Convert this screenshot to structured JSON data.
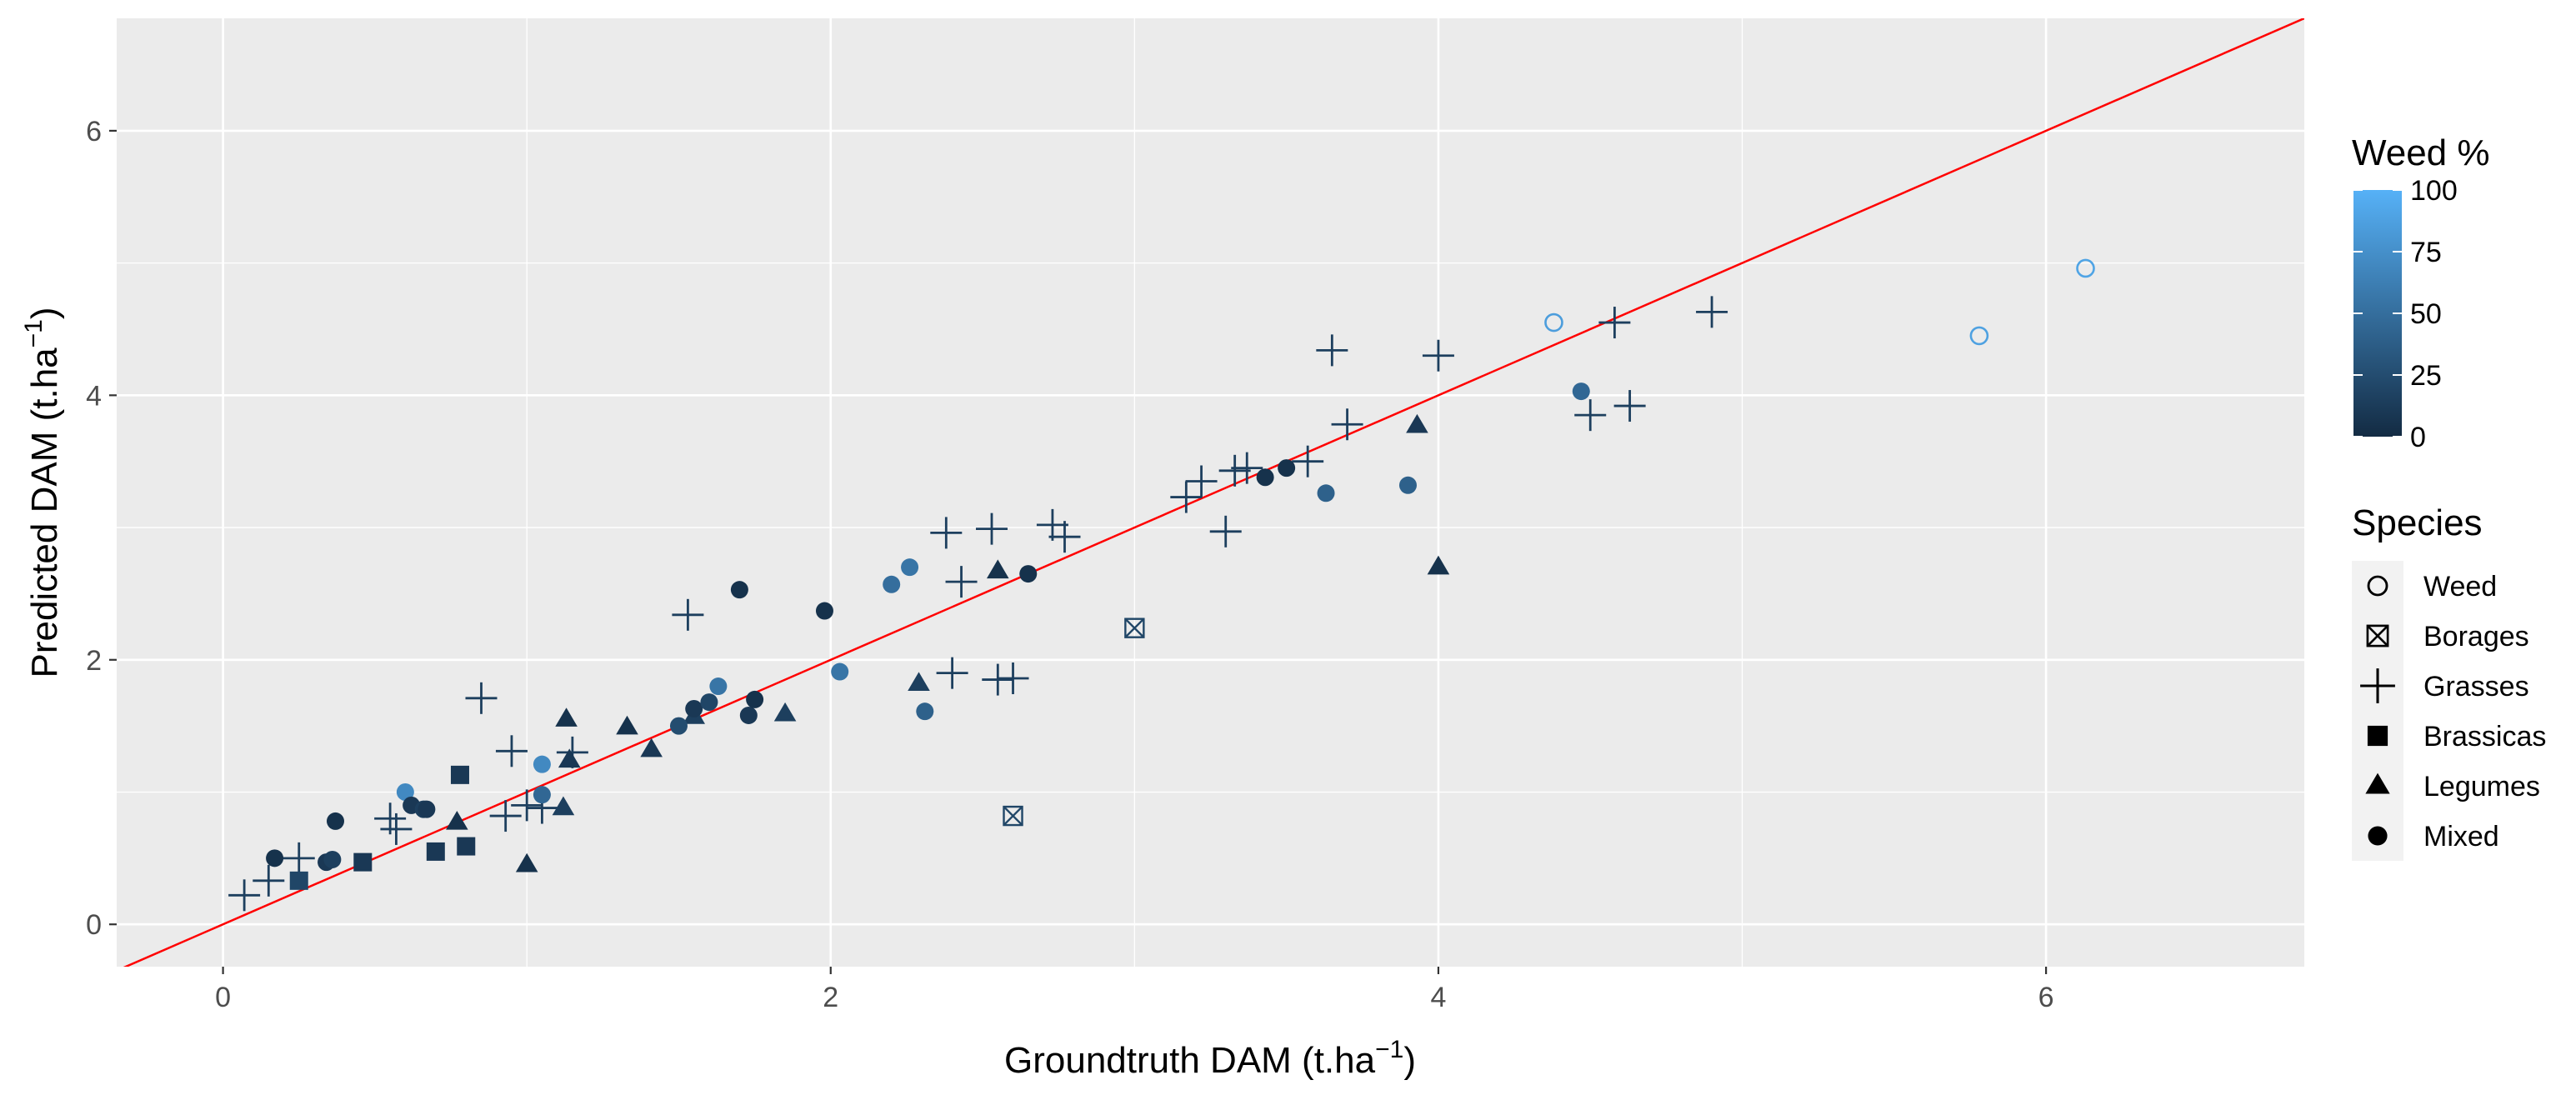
{
  "chart_data": {
    "type": "scatter",
    "title": "",
    "xlabel": "Groundtruth DAM (t.ha",
    "ylabel": "Predicted DAM (t.ha",
    "unit_exponent": "−1",
    "unit_close": ")",
    "xlim": [
      -0.35,
      6.85
    ],
    "ylim": [
      -0.32,
      6.85
    ],
    "x_ticks": [
      0,
      2,
      4,
      6
    ],
    "x_tick_labels": [
      "0",
      "2",
      "4",
      "6"
    ],
    "y_ticks": [
      0,
      2,
      4,
      6
    ],
    "y_tick_labels": [
      "0",
      "2",
      "4",
      "6"
    ],
    "grid": true,
    "reference_line": {
      "slope": 1,
      "intercept": 0,
      "color": "#ff0000"
    },
    "color_scale": {
      "title": "Weed %",
      "min": 0,
      "max": 100,
      "low_color": "#132b43",
      "high_color": "#56b1f7",
      "ticks": [
        0,
        25,
        50,
        75,
        100
      ],
      "tick_labels": [
        "0",
        "25",
        "50",
        "75",
        "100"
      ]
    },
    "shape_legend": {
      "title": "Species",
      "items": [
        {
          "name": "Weed",
          "shape": "circle-open"
        },
        {
          "name": "Borages",
          "shape": "square-x"
        },
        {
          "name": "Grasses",
          "shape": "plus"
        },
        {
          "name": "Brassicas",
          "shape": "square"
        },
        {
          "name": "Legumes",
          "shape": "triangle"
        },
        {
          "name": "Mixed",
          "shape": "circle"
        }
      ]
    },
    "series": [
      {
        "name": "Weed",
        "shape": "circle-open",
        "points": [
          {
            "x": 4.38,
            "y": 4.55,
            "weed": 85
          },
          {
            "x": 5.78,
            "y": 4.45,
            "weed": 88
          },
          {
            "x": 6.13,
            "y": 4.96,
            "weed": 90
          }
        ]
      },
      {
        "name": "Borages",
        "shape": "square-x",
        "points": [
          {
            "x": 3.0,
            "y": 2.24,
            "weed": 20
          },
          {
            "x": 2.6,
            "y": 0.82,
            "weed": 20
          }
        ]
      },
      {
        "name": "Grasses",
        "shape": "plus",
        "points": [
          {
            "x": 0.07,
            "y": 0.22,
            "weed": 15
          },
          {
            "x": 0.15,
            "y": 0.33,
            "weed": 15
          },
          {
            "x": 0.25,
            "y": 0.5,
            "weed": 15
          },
          {
            "x": 0.55,
            "y": 0.8,
            "weed": 15
          },
          {
            "x": 0.57,
            "y": 0.72,
            "weed": 15
          },
          {
            "x": 0.85,
            "y": 1.71,
            "weed": 15
          },
          {
            "x": 0.95,
            "y": 1.31,
            "weed": 15
          },
          {
            "x": 0.93,
            "y": 0.82,
            "weed": 15
          },
          {
            "x": 1.0,
            "y": 0.9,
            "weed": 15
          },
          {
            "x": 1.05,
            "y": 0.88,
            "weed": 15
          },
          {
            "x": 1.15,
            "y": 1.3,
            "weed": 15
          },
          {
            "x": 1.53,
            "y": 2.34,
            "weed": 15
          },
          {
            "x": 2.38,
            "y": 2.96,
            "weed": 15
          },
          {
            "x": 2.43,
            "y": 2.59,
            "weed": 15
          },
          {
            "x": 2.53,
            "y": 2.99,
            "weed": 15
          },
          {
            "x": 2.4,
            "y": 1.9,
            "weed": 15
          },
          {
            "x": 2.55,
            "y": 1.85,
            "weed": 15
          },
          {
            "x": 2.6,
            "y": 1.86,
            "weed": 15
          },
          {
            "x": 2.73,
            "y": 3.02,
            "weed": 15
          },
          {
            "x": 2.77,
            "y": 2.93,
            "weed": 15
          },
          {
            "x": 3.17,
            "y": 3.23,
            "weed": 15
          },
          {
            "x": 3.22,
            "y": 3.35,
            "weed": 15
          },
          {
            "x": 3.3,
            "y": 2.97,
            "weed": 15
          },
          {
            "x": 3.33,
            "y": 3.43,
            "weed": 15
          },
          {
            "x": 3.37,
            "y": 3.45,
            "weed": 15
          },
          {
            "x": 3.57,
            "y": 3.5,
            "weed": 15
          },
          {
            "x": 3.65,
            "y": 4.34,
            "weed": 15
          },
          {
            "x": 3.7,
            "y": 3.78,
            "weed": 15
          },
          {
            "x": 4.0,
            "y": 4.3,
            "weed": 15
          },
          {
            "x": 4.5,
            "y": 3.85,
            "weed": 15
          },
          {
            "x": 4.58,
            "y": 4.55,
            "weed": 15
          },
          {
            "x": 4.63,
            "y": 3.92,
            "weed": 15
          },
          {
            "x": 4.9,
            "y": 4.63,
            "weed": 15
          }
        ]
      },
      {
        "name": "Brassicas",
        "shape": "square",
        "points": [
          {
            "x": 0.25,
            "y": 0.33,
            "weed": 20
          },
          {
            "x": 0.46,
            "y": 0.47,
            "weed": 10
          },
          {
            "x": 0.7,
            "y": 0.55,
            "weed": 10
          },
          {
            "x": 0.78,
            "y": 1.13,
            "weed": 10
          },
          {
            "x": 0.8,
            "y": 0.59,
            "weed": 10
          }
        ]
      },
      {
        "name": "Legumes",
        "shape": "triangle",
        "points": [
          {
            "x": 0.77,
            "y": 0.77,
            "weed": 5
          },
          {
            "x": 1.0,
            "y": 0.45,
            "weed": 5
          },
          {
            "x": 1.12,
            "y": 0.88,
            "weed": 15
          },
          {
            "x": 1.13,
            "y": 1.55,
            "weed": 5
          },
          {
            "x": 1.14,
            "y": 1.24,
            "weed": 10
          },
          {
            "x": 1.33,
            "y": 1.49,
            "weed": 5
          },
          {
            "x": 1.41,
            "y": 1.32,
            "weed": 10
          },
          {
            "x": 1.55,
            "y": 1.57,
            "weed": 15
          },
          {
            "x": 1.85,
            "y": 1.59,
            "weed": 15
          },
          {
            "x": 2.29,
            "y": 1.82,
            "weed": 15
          },
          {
            "x": 2.55,
            "y": 2.67,
            "weed": 5
          },
          {
            "x": 3.93,
            "y": 3.77,
            "weed": 10
          },
          {
            "x": 4.0,
            "y": 2.7,
            "weed": 5
          }
        ]
      },
      {
        "name": "Mixed",
        "shape": "circle",
        "points": [
          {
            "x": 0.17,
            "y": 0.5,
            "weed": 5
          },
          {
            "x": 0.34,
            "y": 0.47,
            "weed": 10
          },
          {
            "x": 0.36,
            "y": 0.49,
            "weed": 15
          },
          {
            "x": 0.37,
            "y": 0.78,
            "weed": 5
          },
          {
            "x": 0.6,
            "y": 1.0,
            "weed": 70
          },
          {
            "x": 0.62,
            "y": 0.9,
            "weed": 10
          },
          {
            "x": 0.66,
            "y": 0.87,
            "weed": 15
          },
          {
            "x": 0.67,
            "y": 0.87,
            "weed": 10
          },
          {
            "x": 1.05,
            "y": 0.98,
            "weed": 45
          },
          {
            "x": 1.05,
            "y": 1.21,
            "weed": 70
          },
          {
            "x": 1.5,
            "y": 1.5,
            "weed": 25
          },
          {
            "x": 1.55,
            "y": 1.63,
            "weed": 10
          },
          {
            "x": 1.6,
            "y": 1.68,
            "weed": 20
          },
          {
            "x": 1.63,
            "y": 1.8,
            "weed": 55
          },
          {
            "x": 1.7,
            "y": 2.53,
            "weed": 5
          },
          {
            "x": 1.73,
            "y": 1.58,
            "weed": 10
          },
          {
            "x": 1.75,
            "y": 1.7,
            "weed": 5
          },
          {
            "x": 1.98,
            "y": 2.37,
            "weed": 5
          },
          {
            "x": 2.03,
            "y": 1.91,
            "weed": 55
          },
          {
            "x": 2.2,
            "y": 2.57,
            "weed": 50
          },
          {
            "x": 2.26,
            "y": 2.7,
            "weed": 55
          },
          {
            "x": 2.31,
            "y": 1.61,
            "weed": 40
          },
          {
            "x": 2.65,
            "y": 2.65,
            "weed": 5
          },
          {
            "x": 3.43,
            "y": 3.38,
            "weed": 5
          },
          {
            "x": 3.5,
            "y": 3.45,
            "weed": 5
          },
          {
            "x": 3.63,
            "y": 3.26,
            "weed": 40
          },
          {
            "x": 3.9,
            "y": 3.32,
            "weed": 40
          },
          {
            "x": 4.47,
            "y": 4.03,
            "weed": 45
          }
        ]
      }
    ]
  }
}
